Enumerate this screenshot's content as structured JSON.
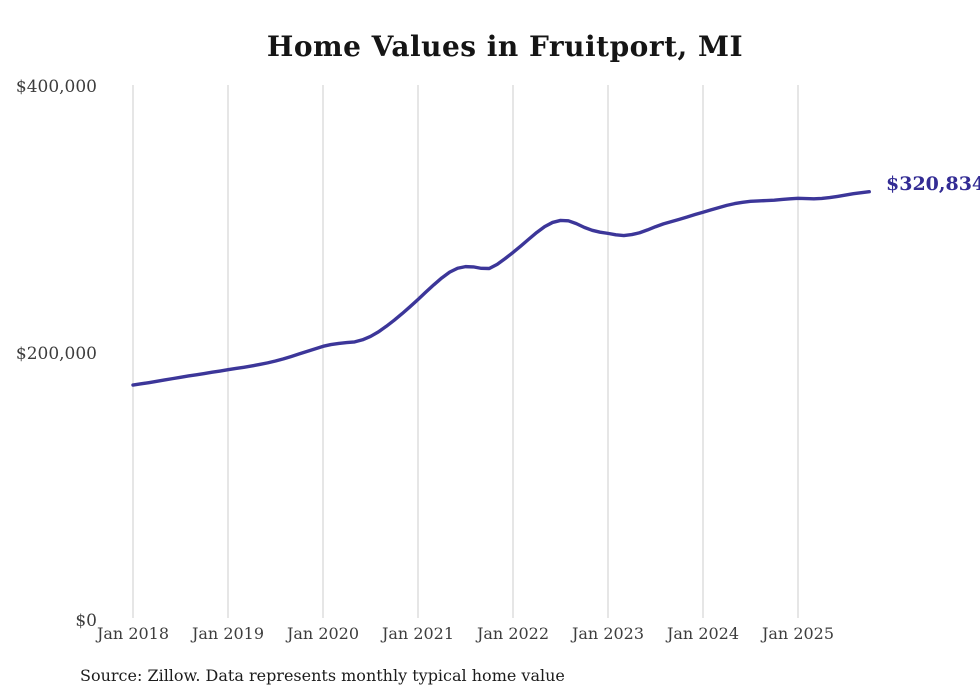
{
  "chart": {
    "title": "Home Values in Fruitport, MI",
    "latest_value_label": "$320,834",
    "source_note": "Source: Zillow. Data represents monthly typical home value",
    "colors": {
      "line": "#3c3699",
      "latest_label": "#332c94",
      "gridline": "#cccccc",
      "axis_text": "#3d3d3d",
      "title_text": "#151515",
      "background": "#ffffff"
    }
  },
  "chart_data": {
    "type": "line",
    "title": "Home Values in Fruitport, MI",
    "xlabel": "",
    "ylabel": "",
    "x": {
      "start": "2018-01",
      "interval": "monthly",
      "count": 94,
      "end": "2025-10"
    },
    "x_tick_labels": [
      "Jan 2018",
      "Jan 2019",
      "Jan 2020",
      "Jan 2021",
      "Jan 2022",
      "Jan 2023",
      "Jan 2024",
      "Jan 2025"
    ],
    "x_tick_month_indices": [
      0,
      12,
      24,
      36,
      48,
      60,
      72,
      84
    ],
    "y_ticks": [
      {
        "label": "$0",
        "value": 0
      },
      {
        "label": "$200,000",
        "value": 200000
      },
      {
        "label": "$400,000",
        "value": 400000
      }
    ],
    "ylim": [
      0,
      400000
    ],
    "grid": "vertical-only",
    "legend": "none",
    "annotations": [
      {
        "text": "$320,834",
        "at": "last-point"
      }
    ],
    "series": [
      {
        "name": "Typical home value",
        "color": "#3c3699",
        "values": [
          176000,
          176900,
          177800,
          178800,
          179800,
          180800,
          181800,
          182800,
          183700,
          184600,
          185600,
          186500,
          187500,
          188400,
          189300,
          190300,
          191400,
          192600,
          194000,
          195600,
          197400,
          199300,
          201200,
          203100,
          205000,
          206300,
          207200,
          207800,
          208300,
          209900,
          212400,
          215800,
          220000,
          224600,
          229500,
          234700,
          240100,
          245700,
          251100,
          256200,
          260600,
          263500,
          264700,
          264500,
          263400,
          263300,
          266400,
          270700,
          275300,
          280200,
          285300,
          290300,
          294700,
          297800,
          299300,
          299000,
          296900,
          294100,
          291900,
          290500,
          289600,
          288500,
          288000,
          288700,
          290100,
          292200,
          294600,
          296700,
          298400,
          300100,
          301900,
          303700,
          305400,
          307200,
          308900,
          310600,
          311900,
          312900,
          313600,
          313900,
          314200,
          314500,
          315000,
          315500,
          315900,
          315700,
          315500,
          315800,
          316400,
          317300,
          318300,
          319300,
          320100,
          320834
        ]
      }
    ],
    "latest_value": 320834,
    "source_note": "Source: Zillow. Data represents monthly typical home value"
  }
}
